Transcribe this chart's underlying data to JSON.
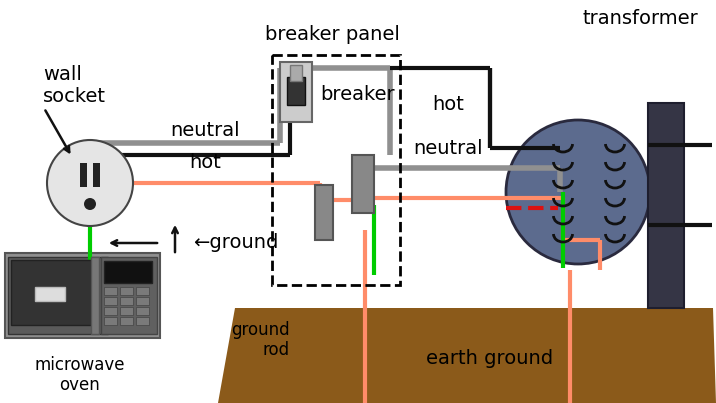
{
  "bg_color": "#ffffff",
  "neutral_color": "#909090",
  "hot_color": "#FF8C69",
  "ground_color": "#00CC00",
  "black_color": "#111111",
  "red_color": "#DD1111",
  "earth_color": "#8B5A1A",
  "transformer_body_color": "#6070A0",
  "transformer_pole_color": "#404050",
  "labels": {
    "wall_socket": "wall\nsocket",
    "neutral": "neutral",
    "hot": "hot",
    "ground": "←ground",
    "breaker_panel": "breaker panel",
    "breaker": "breaker",
    "hot_right": "hot",
    "neutral_right": "neutral",
    "transformer": "transformer",
    "microwave": "microwave\noven",
    "ground_rod": "ground\nrod",
    "earth_ground": "earth ground"
  },
  "label_fontsize": 14,
  "small_fontsize": 12
}
